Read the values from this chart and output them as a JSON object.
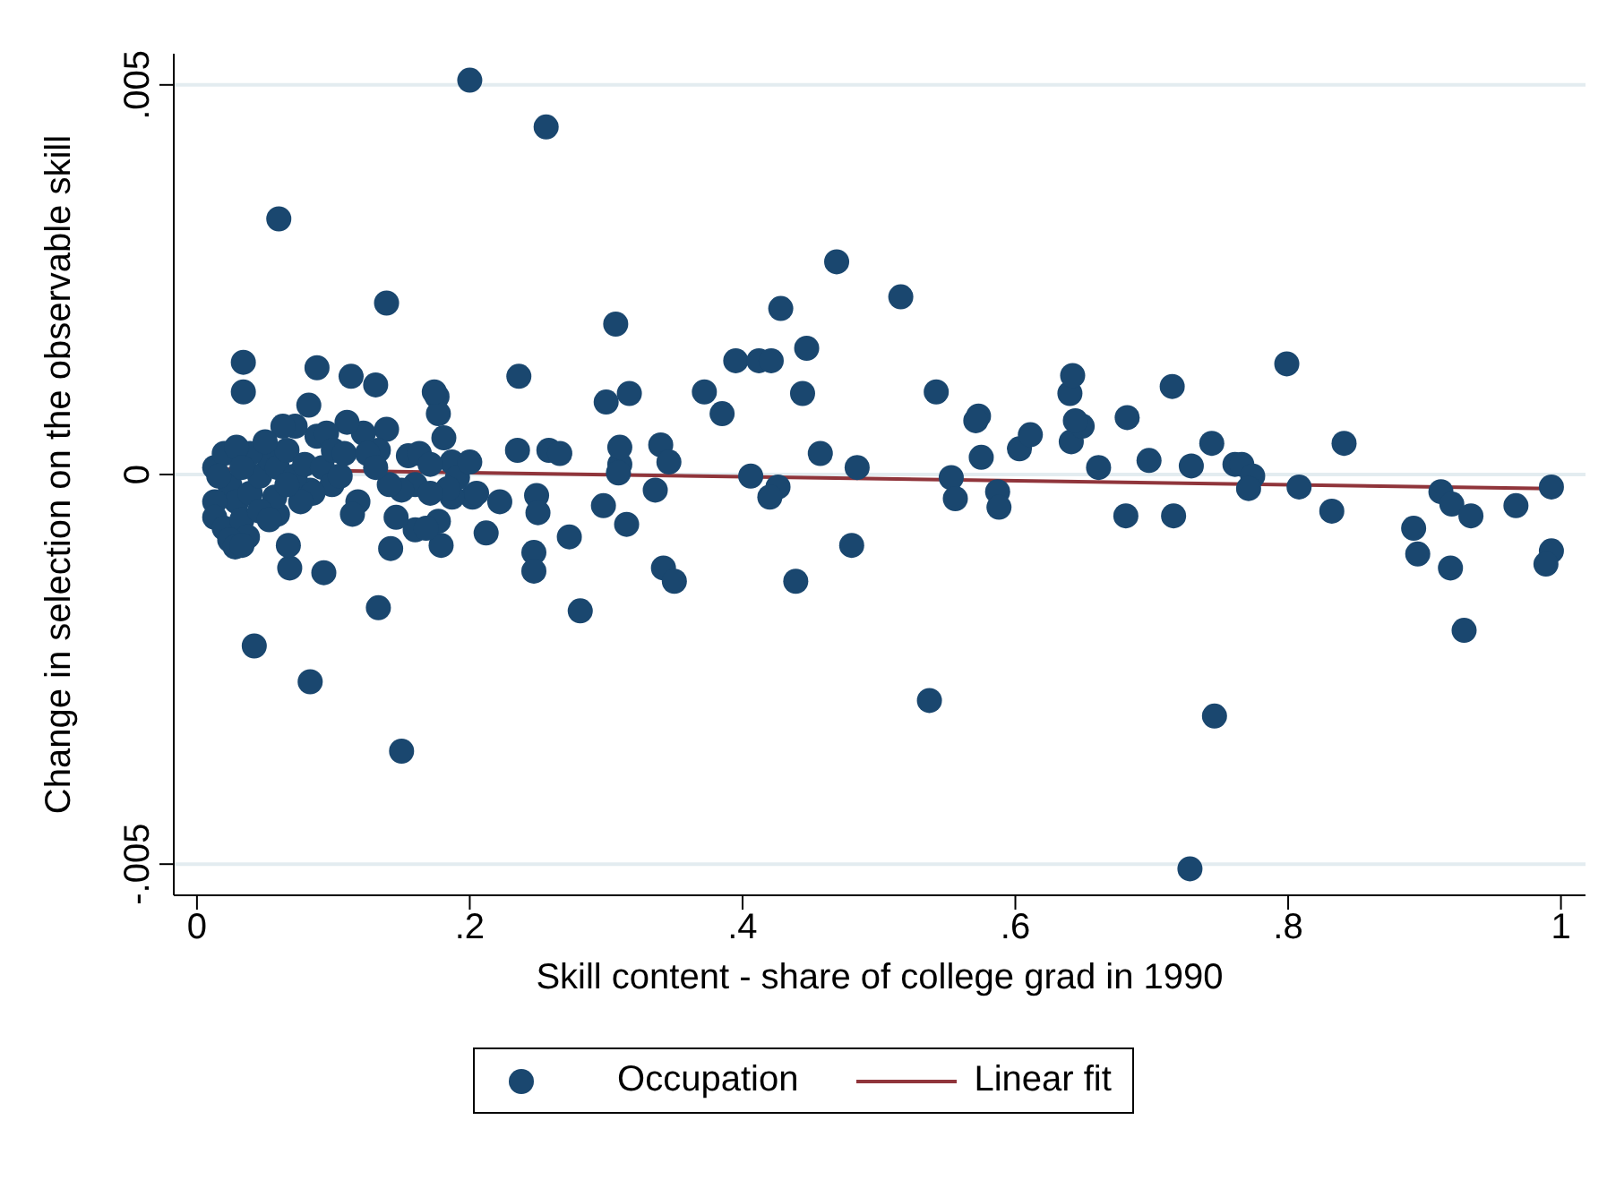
{
  "chart_data": {
    "type": "scatter",
    "xlabel": "Skill content - share of college grad in 1990",
    "ylabel": "Change in selection on the observable skill",
    "xlim": [
      -0.017,
      1.018
    ],
    "ylim": [
      -0.0054,
      0.0054
    ],
    "xticks": [
      0,
      {
        "value": 0.2,
        "label": ".2"
      },
      {
        "value": 0.4,
        "label": ".4"
      },
      {
        "value": 0.6,
        "label": ".6"
      },
      {
        "value": 0.8,
        "label": ".8"
      },
      1
    ],
    "yticks": [
      {
        "value": -0.005,
        "label": "-.005"
      },
      0,
      {
        "value": 0.005,
        "label": ".005"
      }
    ],
    "grid": "y",
    "legend": "bottom",
    "series": [
      {
        "name": "Occupation",
        "marker": "circle",
        "color": "#1a476f",
        "x": [
          0.2,
          0.256,
          0.06,
          0.139,
          0.469,
          0.516,
          0.307,
          0.428,
          0.034,
          0.088,
          0.113,
          0.131,
          0.236,
          0.395,
          0.412,
          0.421,
          0.447,
          0.3,
          0.317,
          0.372,
          0.385,
          0.444,
          0.176,
          0.177,
          0.034,
          0.082,
          0.457,
          0.484,
          0.406,
          0.426,
          0.42,
          0.48,
          0.439,
          0.31,
          0.309,
          0.336,
          0.315,
          0.342,
          0.35,
          0.298,
          0.281,
          0.273,
          0.258,
          0.266,
          0.235,
          0.247,
          0.247,
          0.249,
          0.25,
          0.222,
          0.212,
          0.202,
          0.16,
          0.133,
          0.142,
          0.15,
          0.042,
          0.083,
          0.093,
          0.068,
          0.067,
          0.537,
          0.542,
          0.553,
          0.556,
          0.587,
          0.588,
          0.573,
          0.575,
          0.603,
          0.611,
          0.64,
          0.641,
          0.649,
          0.661,
          0.642,
          0.571,
          0.644,
          0.682,
          0.681,
          0.698,
          0.715,
          0.716,
          0.729,
          0.744,
          0.761,
          0.766,
          0.774,
          0.771,
          0.799,
          0.808,
          0.832,
          0.841,
          0.892,
          0.895,
          0.912,
          0.92,
          0.919,
          0.934,
          0.929,
          0.967,
          0.993,
          0.993,
          0.989,
          0.746,
          0.728,
          0.174,
          0.31,
          0.34,
          0.346,
          0.146,
          0.179,
          0.177,
          0.168,
          0.187,
          0.205,
          0.187,
          0.181,
          0.139,
          0.133,
          0.122,
          0.11,
          0.088,
          0.095,
          0.072,
          0.063,
          0.16,
          0.15,
          0.141,
          0.118,
          0.114,
          0.083,
          0.059,
          0.057,
          0.013,
          0.02,
          0.024,
          0.029,
          0.013,
          0.013,
          0.02,
          0.033,
          0.039,
          0.046,
          0.053,
          0.039,
          0.029,
          0.016,
          0.033,
          0.046,
          0.059,
          0.066,
          0.072,
          0.079,
          0.092,
          0.099,
          0.105,
          0.085,
          0.076,
          0.053,
          0.037,
          0.024,
          0.028,
          0.05,
          0.066,
          0.1,
          0.108,
          0.125,
          0.131,
          0.155,
          0.163,
          0.171,
          0.191,
          0.184,
          0.171,
          0.2,
          0.033
        ],
        "values": [
          0.00506,
          0.00446,
          0.00328,
          0.0022,
          0.00273,
          0.00228,
          0.00193,
          0.00213,
          0.00144,
          0.00137,
          0.00126,
          0.00115,
          0.00126,
          0.00146,
          0.00146,
          0.00146,
          0.00162,
          0.00093,
          0.00104,
          0.00106,
          0.00078,
          0.00104,
          0.001,
          0.00078,
          0.00106,
          0.00089,
          0.00027,
          9e-05,
          -2e-05,
          -0.00016,
          -0.00029,
          -0.00091,
          -0.00137,
          0.00013,
          2e-05,
          -0.0002,
          -0.00064,
          -0.0012,
          -0.00137,
          -0.0004,
          -0.00175,
          -0.0008,
          0.00031,
          0.00027,
          0.00031,
          -0.001,
          -0.00124,
          -0.00027,
          -0.00049,
          -0.00035,
          -0.00075,
          -0.00029,
          -0.00071,
          -0.00171,
          -0.00095,
          -0.00355,
          -0.0022,
          -0.00266,
          -0.00126,
          -0.0012,
          -0.00091,
          -0.0029,
          0.00106,
          -4e-05,
          -0.00031,
          -0.00022,
          -0.00042,
          0.00075,
          0.00022,
          0.00033,
          0.00051,
          0.00104,
          0.00042,
          0.00062,
          9e-05,
          0.00127,
          0.00069,
          0.00069,
          0.00073,
          -0.00053,
          0.00018,
          0.00113,
          -0.00053,
          0.00011,
          0.0004,
          0.00013,
          0.00013,
          -2e-05,
          -0.00018,
          0.00142,
          -0.00016,
          -0.00047,
          0.0004,
          -0.00069,
          -0.00102,
          -0.00022,
          -0.00038,
          -0.0012,
          -0.00053,
          -0.002,
          -0.0004,
          -0.00016,
          -0.00098,
          -0.00115,
          -0.0031,
          -0.00506,
          0.00106,
          0.00035,
          0.00038,
          0.00016,
          -0.00055,
          -0.00091,
          -0.0006,
          -0.00069,
          -0.00029,
          -0.00024,
          0.00016,
          0.00047,
          0.00058,
          0.00031,
          0.00053,
          0.00067,
          0.00049,
          0.00053,
          0.00062,
          0.00062,
          -0.00013,
          -0.0002,
          -0.00013,
          -0.00035,
          -0.00051,
          -0.0002,
          -0.00051,
          -0.00029,
          9e-05,
          0.00027,
          -0.00013,
          -0.00035,
          -0.00035,
          -0.00055,
          -0.00069,
          -0.00058,
          -0.00024,
          -2e-05,
          0.0002,
          0.00027,
          0.00035,
          -2e-05,
          9e-05,
          -0.00047,
          9e-05,
          0.00031,
          -2e-05,
          0.00013,
          9e-05,
          -0.00013,
          -2e-05,
          -0.00024,
          -0.00035,
          -0.00058,
          -0.0008,
          -0.00084,
          -0.00093,
          0.00042,
          -0.00013,
          0.00031,
          0.00027,
          0.00027,
          9e-05,
          0.00024,
          0.00027,
          0.00013,
          -4e-05,
          -0.00018,
          -0.00024,
          0.00016,
          -0.00091
        ]
      },
      {
        "type": "line",
        "name": "Linear fit",
        "marker": "none",
        "color": "#90353b",
        "x": [
          0.013,
          0.993
        ],
        "values": [
          7e-05,
          -0.00018
        ]
      }
    ]
  }
}
